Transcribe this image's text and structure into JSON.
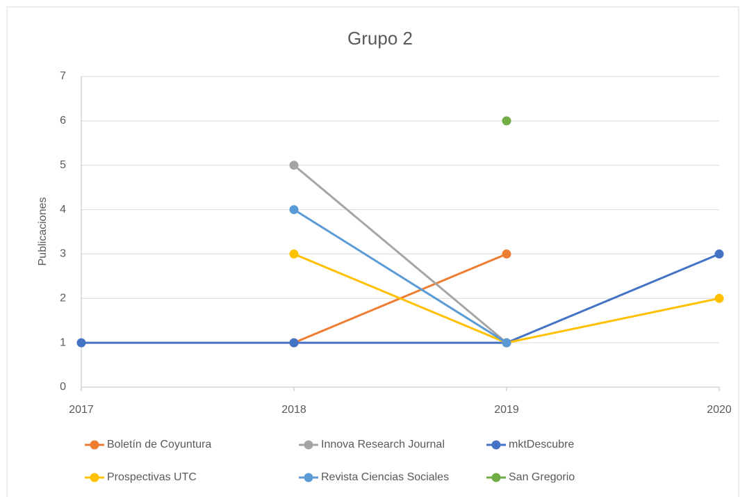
{
  "chart_data": {
    "type": "line",
    "title": "Grupo 2",
    "y_label": "Publicaciones",
    "x": [
      2017,
      2018,
      2019,
      2020
    ],
    "xlim": [
      2017,
      2020
    ],
    "xticks": [
      2017,
      2018,
      2019,
      2020
    ],
    "ylim": [
      0,
      7
    ],
    "yticks": [
      0,
      1,
      2,
      3,
      4,
      5,
      6,
      7
    ],
    "grid": true,
    "legend": "bottom",
    "series": [
      {
        "name": "Boletín de Coyuntura",
        "color": "#ED7D31",
        "values": [
          null,
          1,
          3,
          null
        ]
      },
      {
        "name": "Innova Research Journal",
        "color": "#A5A5A5",
        "values": [
          null,
          5,
          1,
          null
        ]
      },
      {
        "name": "mktDescubre",
        "color": "#4472C4",
        "values": [
          1,
          1,
          1,
          3
        ]
      },
      {
        "name": "Prospectivas UTC",
        "color": "#FFC000",
        "values": [
          null,
          3,
          1,
          2
        ]
      },
      {
        "name": "Revista Ciencias Sociales",
        "color": "#5B9BD5",
        "values": [
          null,
          4,
          1,
          null
        ]
      },
      {
        "name": "San Gregorio",
        "color": "#70AD47",
        "values": [
          null,
          null,
          6,
          null
        ]
      }
    ]
  }
}
